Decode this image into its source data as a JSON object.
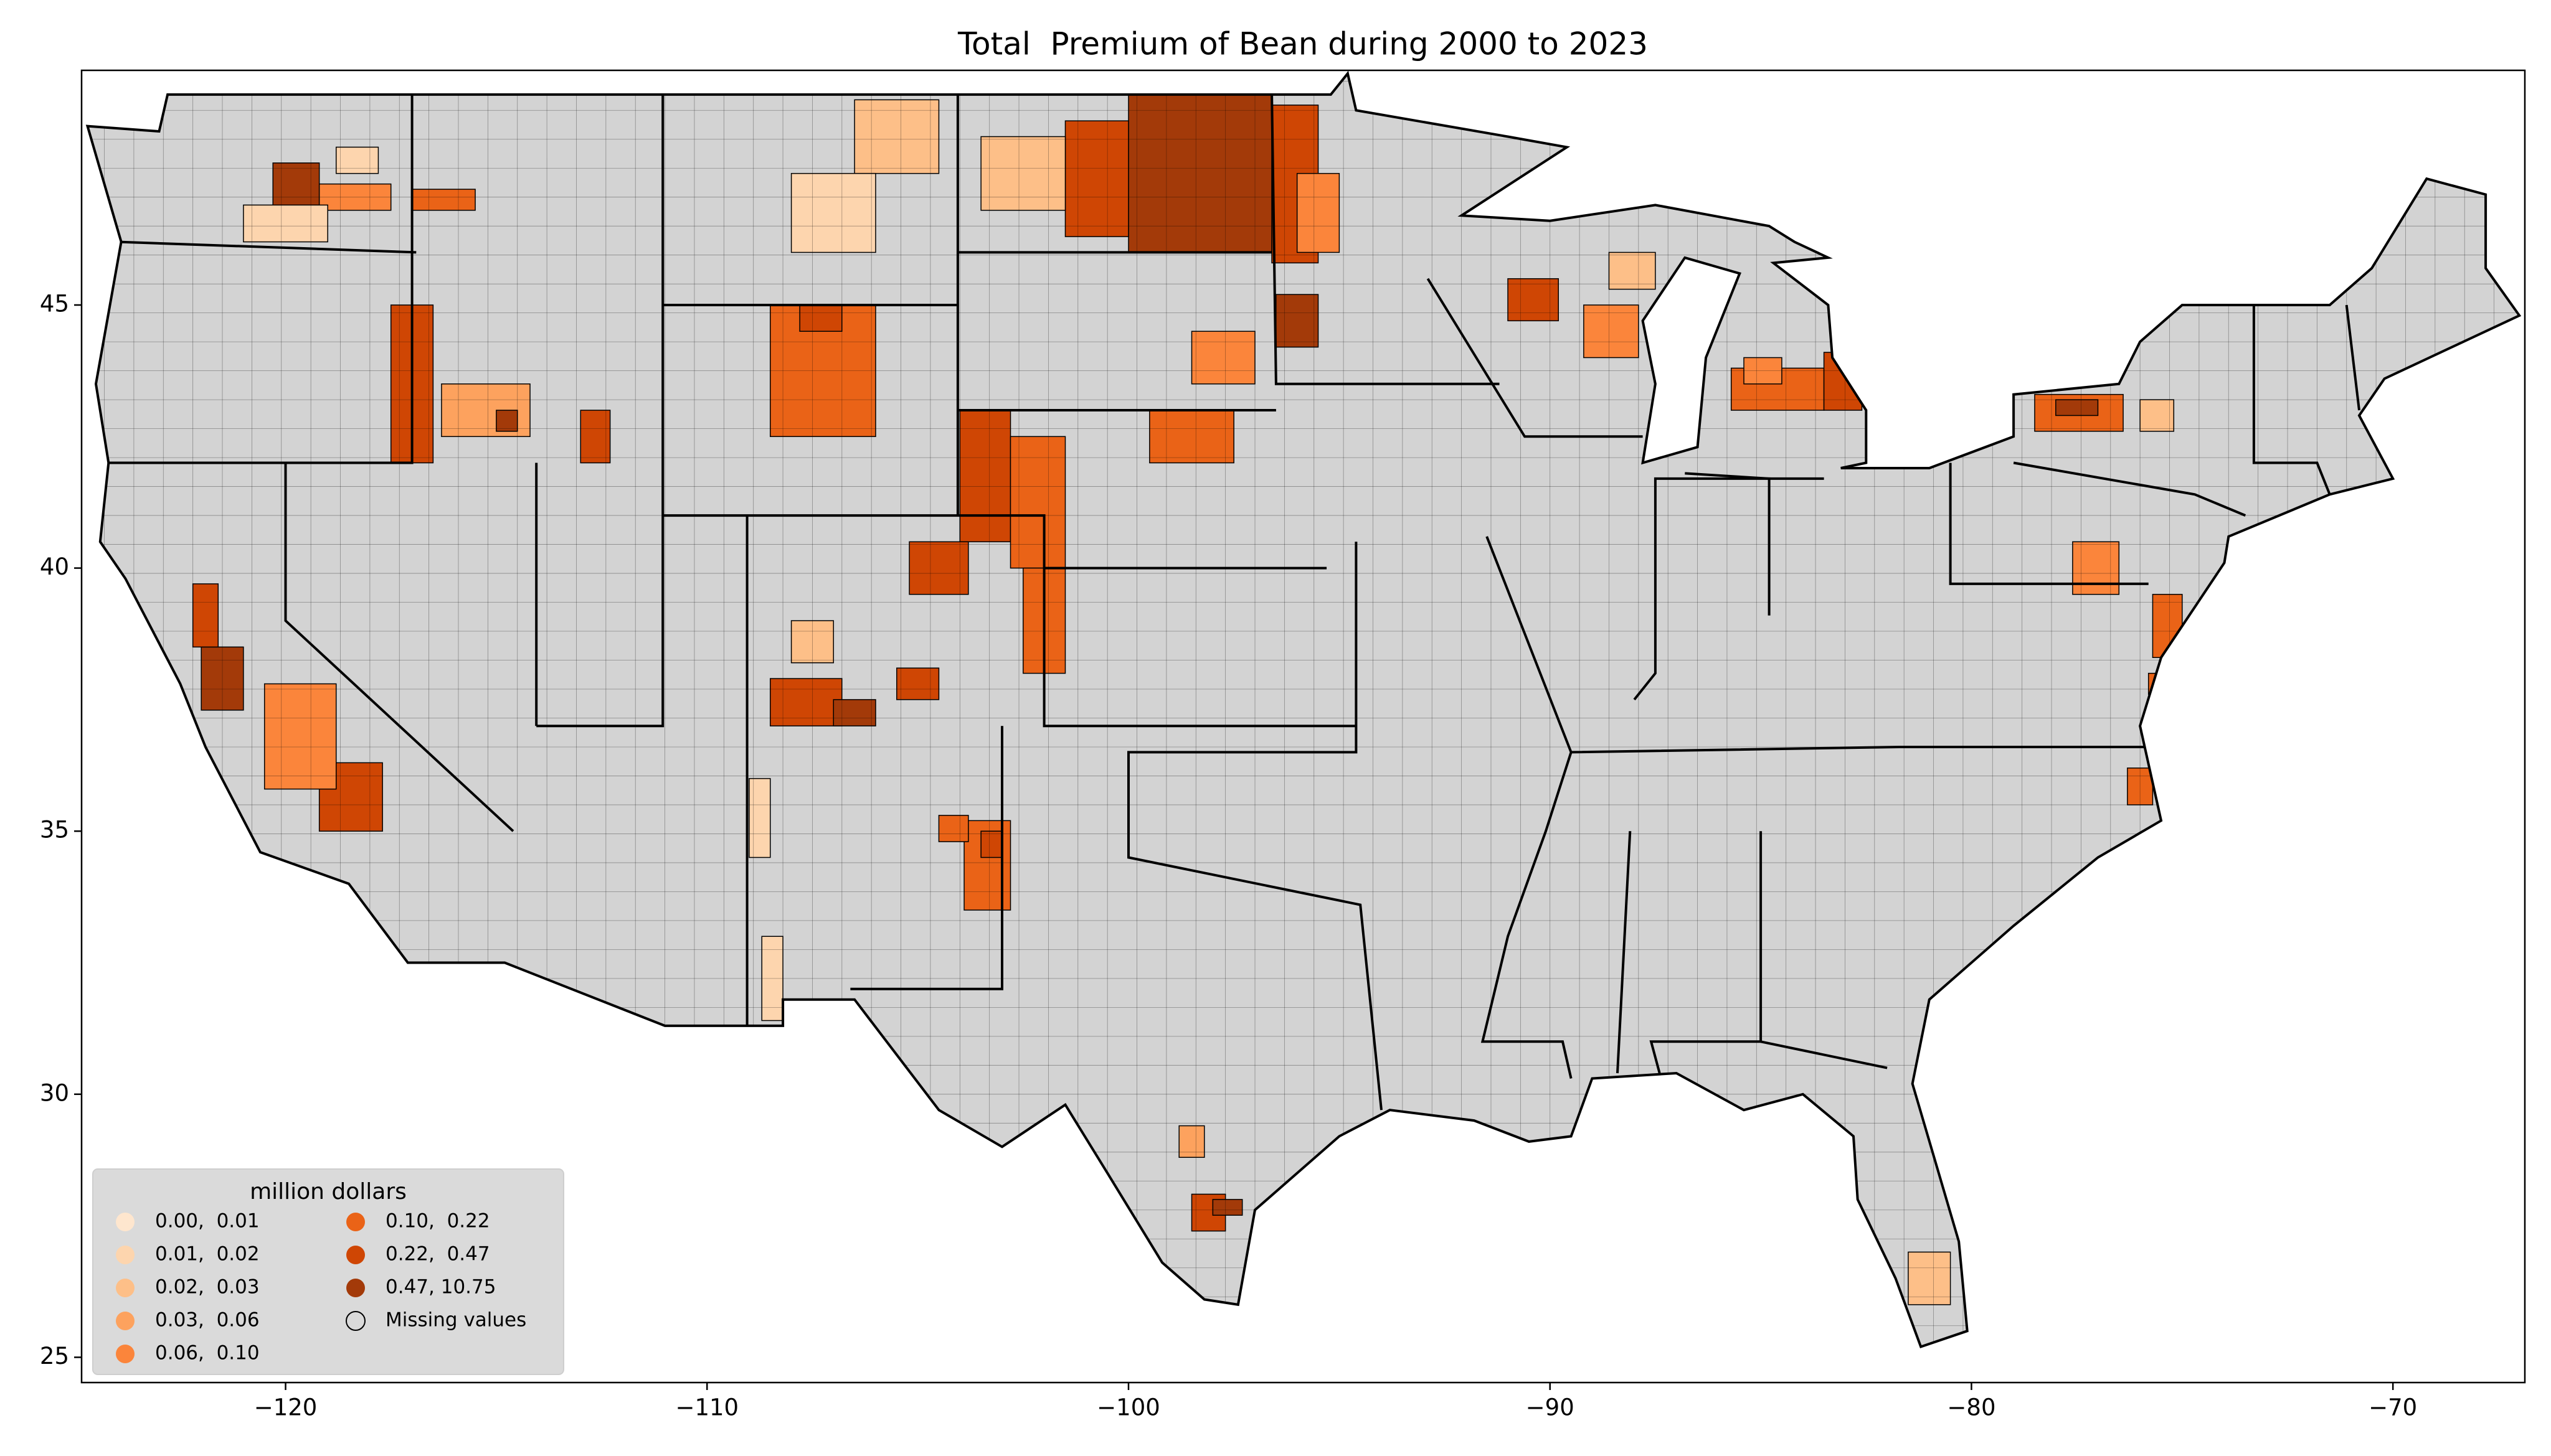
{
  "chart_data": {
    "type": "choropleth",
    "title": "Total  Premium of Bean during 2000 to 2023",
    "xlim": [
      -124.84,
      -66.87
    ],
    "ylim": [
      24.52,
      49.46
    ],
    "xticks": [
      {
        "value": -120,
        "label": "−120"
      },
      {
        "value": -110,
        "label": "−110"
      },
      {
        "value": -100,
        "label": "−100"
      },
      {
        "value": -90,
        "label": "−90"
      },
      {
        "value": -80,
        "label": "−80"
      },
      {
        "value": -70,
        "label": "−70"
      }
    ],
    "yticks": [
      25,
      30,
      35,
      40,
      45
    ],
    "missing_color": "#d3d3d3",
    "legend": {
      "title": "million dollars",
      "position": "lower left",
      "entries": [
        {
          "label": "0.00,  0.01",
          "color": "#fee6ce"
        },
        {
          "label": "0.01,  0.02",
          "color": "#fdd5ae"
        },
        {
          "label": "0.02,  0.03",
          "color": "#fdbf88"
        },
        {
          "label": "0.03,  0.06",
          "color": "#fda25e"
        },
        {
          "label": "0.06,  0.10",
          "color": "#fb853b"
        },
        {
          "label": "0.10,  0.22",
          "color": "#ea6317"
        },
        {
          "label": "0.22,  0.47",
          "color": "#cf4604"
        },
        {
          "label": "0.47, 10.75",
          "color": "#a33a09"
        }
      ],
      "missing_label": "Missing values"
    }
  }
}
